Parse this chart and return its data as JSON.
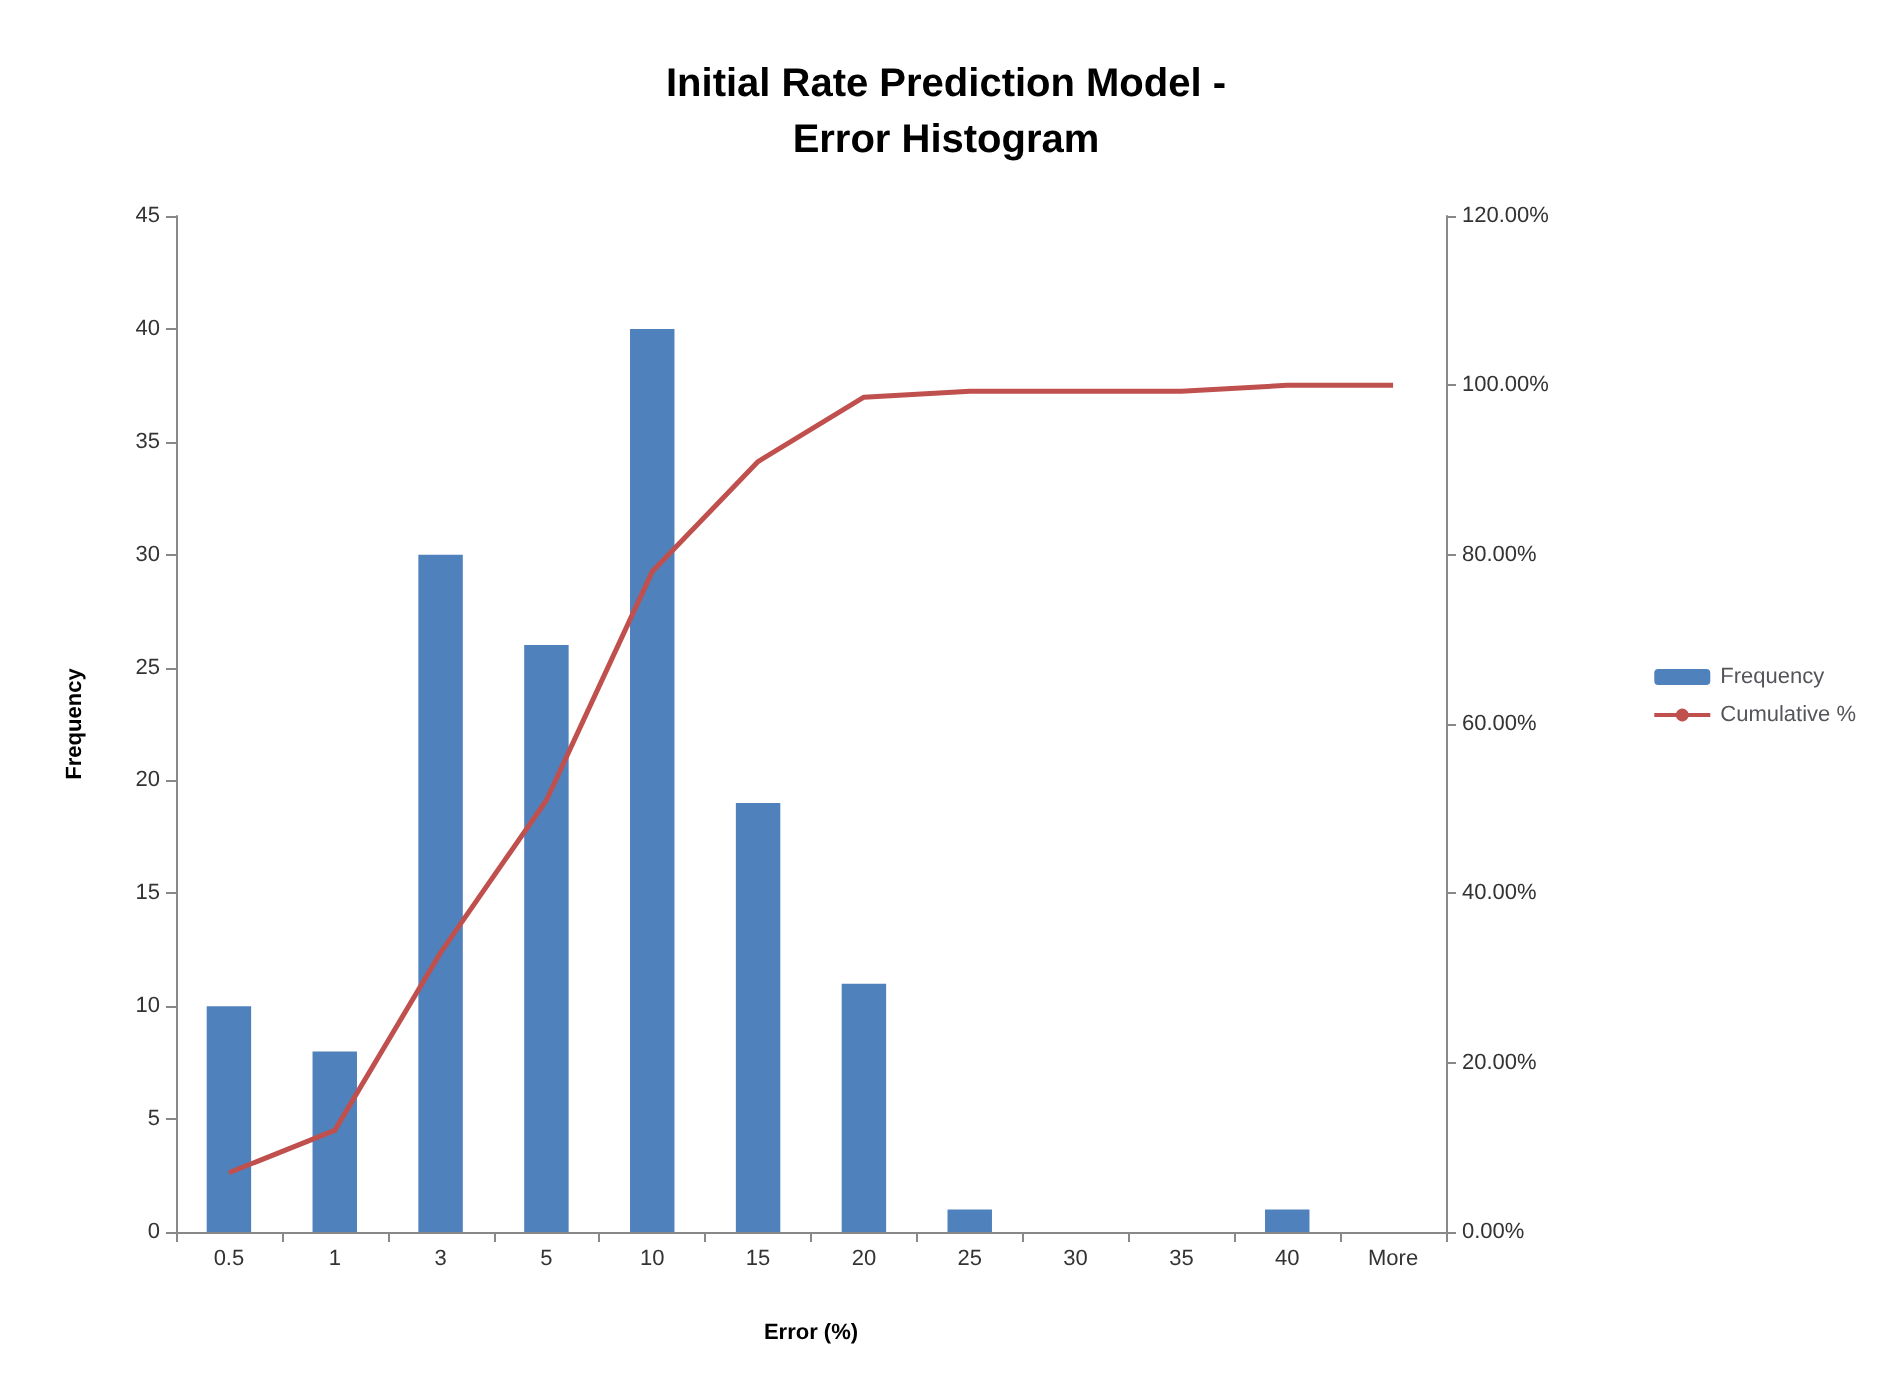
{
  "chart_data": {
    "type": "bar",
    "title": "Initial Rate Prediction Model -\nError Histogram",
    "xlabel": "Error (%)",
    "ylabel": "Frequency",
    "categories": [
      "0.5",
      "1",
      "3",
      "5",
      "10",
      "15",
      "20",
      "25",
      "30",
      "35",
      "40",
      "More"
    ],
    "series": [
      {
        "name": "Frequency",
        "color": "#4f81bd",
        "values": [
          10,
          8,
          30,
          26,
          40,
          19,
          11,
          1,
          0,
          0,
          1,
          0
        ]
      },
      {
        "name": "Cumulative %",
        "type": "line",
        "axis": "y2",
        "color": "#c0504d",
        "values": [
          7,
          12,
          33,
          51,
          78,
          91,
          98.6,
          99.3,
          99.3,
          99.3,
          100,
          100
        ]
      }
    ],
    "ylim": [
      0,
      45
    ],
    "yticks": [
      0,
      5,
      10,
      15,
      20,
      25,
      30,
      35,
      40,
      45
    ],
    "y2lim": [
      0,
      120
    ],
    "y2ticks": [
      {
        "value": 0,
        "label": "0.00%"
      },
      {
        "value": 20,
        "label": "20.00%"
      },
      {
        "value": 40,
        "label": "40.00%"
      },
      {
        "value": 60,
        "label": "60.00%"
      },
      {
        "value": 80,
        "label": "80.00%"
      },
      {
        "value": 100,
        "label": "100.00%"
      },
      {
        "value": 120,
        "label": "120.00%"
      }
    ],
    "legend": "right",
    "grid": false,
    "marker": "none"
  }
}
